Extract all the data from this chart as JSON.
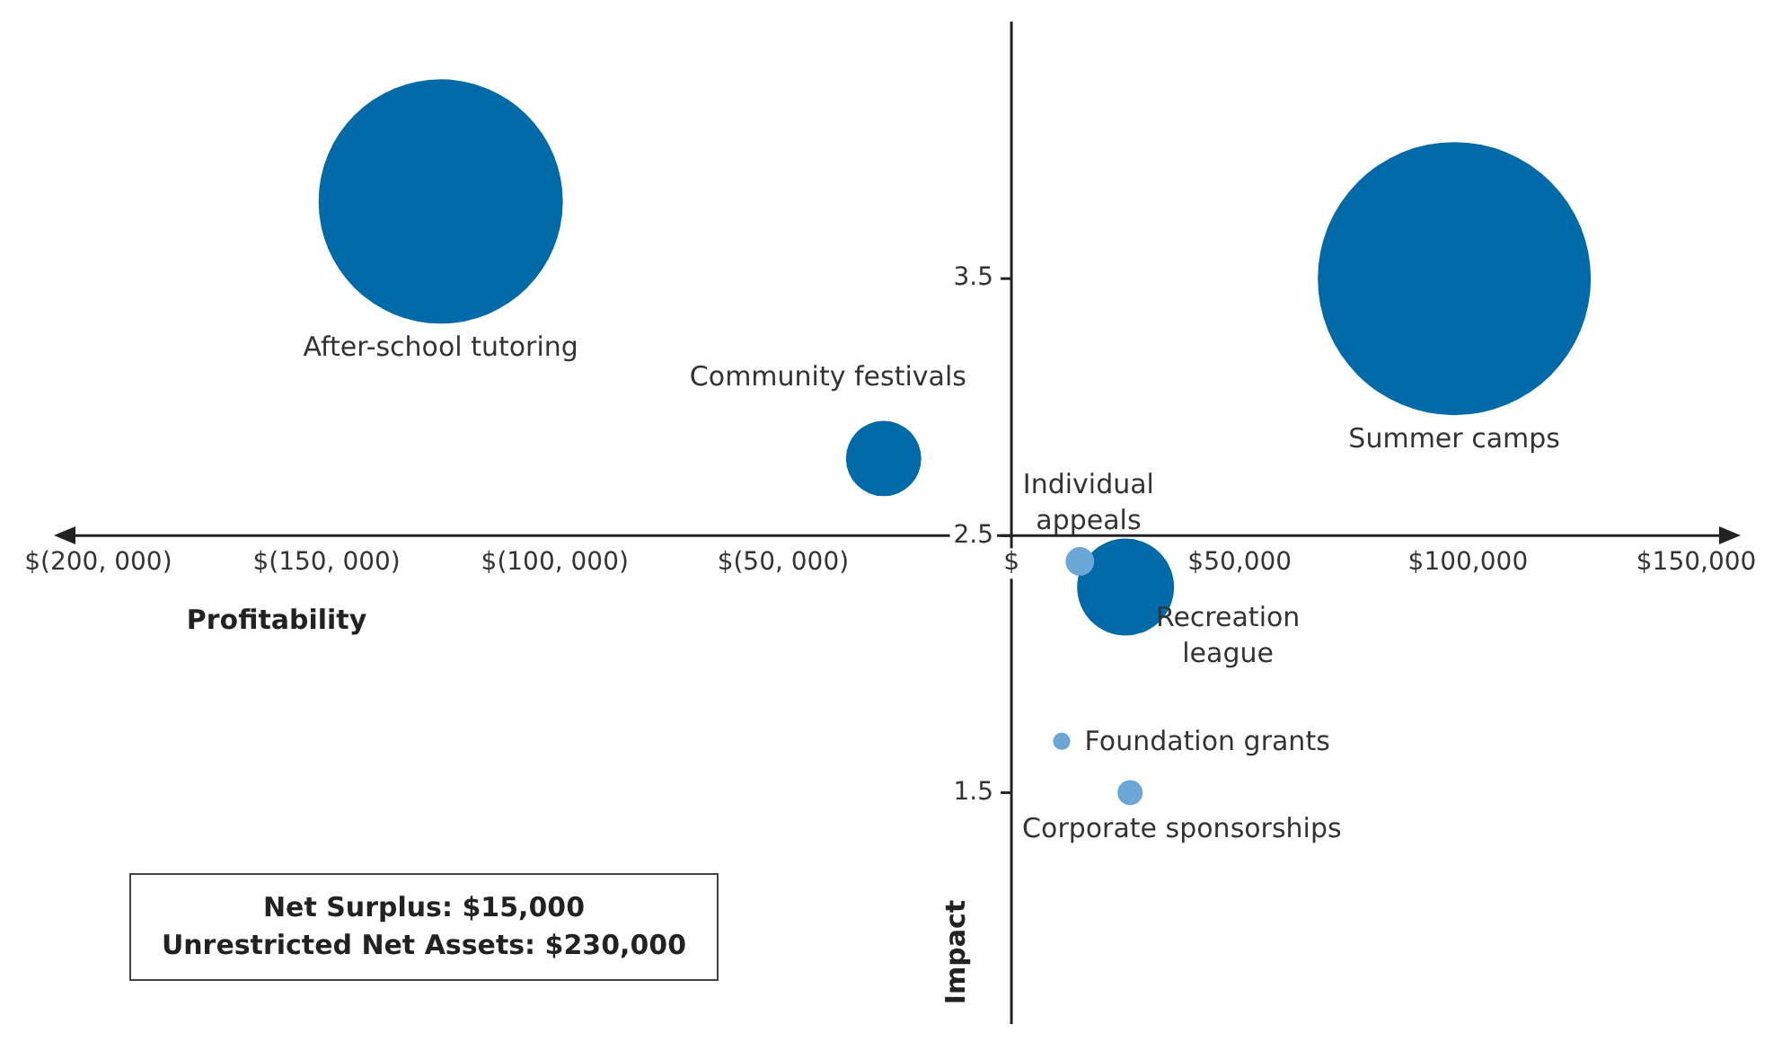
{
  "chart_data": {
    "type": "bubble",
    "xlabel": "Profitability",
    "ylabel": "Impact",
    "xlim": [
      -205000,
      155000
    ],
    "ylim": [
      0.6,
      4.5
    ],
    "xticks": [
      {
        "value": -200000,
        "label": "$(200, 000)"
      },
      {
        "value": -150000,
        "label": "$(150, 000)"
      },
      {
        "value": -100000,
        "label": "$(100, 000)"
      },
      {
        "value": -50000,
        "label": "$(50, 000)"
      },
      {
        "value": 0,
        "label": "$"
      },
      {
        "value": 50000,
        "label": "$50,000"
      },
      {
        "value": 100000,
        "label": "$100,000"
      },
      {
        "value": 150000,
        "label": "$150,000"
      }
    ],
    "yticks": [
      1.5,
      2.5,
      3.5
    ],
    "grid": false,
    "legend": false,
    "series": [
      {
        "name": "After-school tutoring",
        "color": "#006aa8",
        "x": [
          -125000
        ],
        "values": [
          3.8
        ],
        "sizes": [
          0.8
        ]
      },
      {
        "name": "Community festivals",
        "color": "#006aa8",
        "x": [
          -28000
        ],
        "values": [
          2.8
        ],
        "sizes": [
          0.076
        ]
      },
      {
        "name": "Summer camps",
        "color": "#006aa8",
        "x": [
          97000
        ],
        "values": [
          3.5
        ],
        "sizes": [
          1
        ]
      },
      {
        "name": "Individual appeals",
        "color": "#6aa6d6",
        "x": [
          15000
        ],
        "values": [
          2.4
        ],
        "sizes": [
          0.011
        ]
      },
      {
        "name": "Recreation league",
        "color": "#006aa8",
        "x": [
          25000
        ],
        "values": [
          2.3
        ],
        "sizes": [
          0.126
        ]
      },
      {
        "name": "Foundation grants",
        "color": "#6aa6d6",
        "x": [
          11000
        ],
        "values": [
          1.7
        ],
        "sizes": [
          0.004
        ]
      },
      {
        "name": "Corporate sponsorships",
        "color": "#6aa6d6",
        "x": [
          26000
        ],
        "values": [
          1.5
        ],
        "sizes": [
          0.0085
        ]
      }
    ],
    "annotations": [
      "Net Surplus: $15,000",
      "Unrestricted Net Assets: $230,000"
    ]
  }
}
